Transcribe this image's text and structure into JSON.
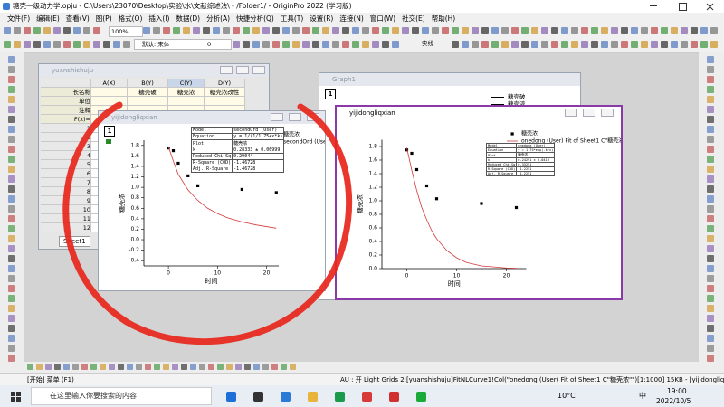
{
  "app": {
    "title": "糖壳一级动力学.opju - C:\\Users\\23070\\Desktop\\实验\\水\\文献综述法\\ - /Folder1/ - OriginPro 2022 (学习版)",
    "menu": [
      "文件(F)",
      "编辑(E)",
      "查看(V)",
      "图(P)",
      "格式(O)",
      "插入(I)",
      "数据(D)",
      "分析(A)",
      "快捷分析(Q)",
      "工具(T)",
      "设置(R)",
      "连接(N)",
      "窗口(W)",
      "社交(E)",
      "帮助(H)"
    ],
    "toolbar": {
      "zoom": "100%",
      "font": "默认: 宋体",
      "size": "0",
      "line": "实线"
    }
  },
  "worksheet": {
    "title": "yuanshishuju",
    "columns": [
      "A(X)",
      "B(Y)",
      "C(Y)",
      "D(Y)"
    ],
    "row_labels": [
      "长名称",
      "单位",
      "注释",
      "F(x)="
    ],
    "long_names": [
      "糖壳破",
      "糖壳浓",
      "糖壳浓改性"
    ],
    "rows": [
      1,
      2,
      3,
      4,
      5,
      6,
      7,
      8,
      9,
      10,
      11,
      12
    ],
    "sheet": "Sheet1"
  },
  "graph1": {
    "title": "Graph1",
    "layer": "1",
    "legend": [
      "糖壳破",
      "糖壳浓"
    ]
  },
  "windows": [
    {
      "title": "yijidongliqxian",
      "layer": "1"
    },
    {
      "title": "yijidongliqxian",
      "layer": "1"
    }
  ],
  "chart_data": [
    {
      "type": "scatter",
      "x_label": "时间",
      "y_label": "糖壳浓",
      "xlim": [
        -5,
        22.5
      ],
      "ylim": [
        -0.5,
        1.9
      ],
      "xticks": [
        0,
        10,
        20
      ],
      "yticks": [
        -0.4,
        -0.2,
        {
          "value": 0,
          "label": "0.0"
        },
        0.2,
        0.4,
        0.6,
        0.8,
        {
          "value": 1,
          "label": "1.0"
        },
        1.2,
        1.4,
        1.6,
        1.8
      ],
      "legend": "upper right",
      "series": [
        {
          "name": "糖壳浓",
          "color": "#000000",
          "style": "marker",
          "x": [
            0,
            1,
            2,
            4,
            6,
            15,
            22
          ],
          "values": [
            1.75,
            1.7,
            1.46,
            1.22,
            1.03,
            0.96,
            0.9
          ]
        },
        {
          "name": "secondOrd (User)",
          "color": "#d43a3a",
          "style": "line",
          "x": [
            0,
            1,
            2,
            4,
            6,
            8,
            10,
            12,
            15,
            18,
            22
          ],
          "values": [
            1.78,
            1.5,
            1.25,
            0.95,
            0.75,
            0.6,
            0.5,
            0.42,
            0.34,
            0.28,
            0.22
          ]
        }
      ],
      "fit_table": [
        [
          "Model",
          "secondOrd (User)"
        ],
        [
          "Equation",
          "y = 1/(1/1.75+x*k)"
        ],
        [
          "Plot",
          "糖壳浓"
        ],
        [
          "k",
          "0.28333 ± 0.06999"
        ],
        [
          "Reduced Chi-Sq",
          "0.29044"
        ],
        [
          "R-Square (COD)",
          "-1.46728"
        ],
        [
          "Adj. R-Square",
          "-1.46728"
        ]
      ]
    },
    {
      "type": "scatter",
      "x_label": "时间",
      "y_label": "糖壳浓",
      "xlim": [
        -5,
        24
      ],
      "ylim": [
        0,
        1.9
      ],
      "xticks": [
        0,
        10,
        20
      ],
      "yticks": [
        {
          "value": 0,
          "label": "0.0"
        },
        0.2,
        0.4,
        0.6,
        0.8,
        {
          "value": 1,
          "label": "1.0"
        },
        1.2,
        1.4,
        1.6,
        1.8
      ],
      "legend": "upper right",
      "series": [
        {
          "name": "糖壳浓",
          "color": "#000000",
          "style": "marker",
          "x": [
            0,
            1,
            2,
            4,
            6,
            15,
            22
          ],
          "values": [
            1.75,
            1.7,
            1.46,
            1.22,
            1.03,
            0.96,
            0.9
          ]
        },
        {
          "name": "onedong (User) Fit of Sheet1 C\"糖壳浓\"",
          "color": "#d43a3a",
          "style": "line",
          "x": [
            0,
            1,
            2,
            3,
            4,
            5,
            6,
            8,
            10,
            12,
            15,
            20,
            22
          ],
          "values": [
            1.78,
            1.45,
            1.15,
            0.9,
            0.72,
            0.56,
            0.44,
            0.27,
            0.16,
            0.09,
            0.04,
            0.01,
            0.005
          ]
        }
      ],
      "fit_table": [
        [
          "Model",
          "onedong (User)"
        ],
        [
          "Equation",
          "y = 1.75*exp(-k*x)"
        ],
        [
          "Plot",
          "糖壳浓"
        ],
        [
          "k",
          "0.24291 ± 0.0419"
        ],
        [
          "Reduced Chi-Sq",
          "0.33251"
        ],
        [
          "R-Square (COD)",
          "-1.2251"
        ],
        [
          "Adj. R-Square",
          "-1.2251"
        ]
      ]
    }
  ],
  "status": {
    "menu": "[开始] 菜单 (F1)",
    "info": "AU : 开 Light Grids 2:[yuanshishuju]FitNLCurve1!Col(\"onedong (User) Fit of Sheet1 C\"糖壳浓\"\")[1:1000] 15KB - [yijidongliqxian]1!1 弧度"
  },
  "taskbar": {
    "search": "在这里输入你要搜索的内容",
    "weather": "10°C",
    "ime": "中",
    "time": "19:00",
    "date": "2022/10/5"
  }
}
